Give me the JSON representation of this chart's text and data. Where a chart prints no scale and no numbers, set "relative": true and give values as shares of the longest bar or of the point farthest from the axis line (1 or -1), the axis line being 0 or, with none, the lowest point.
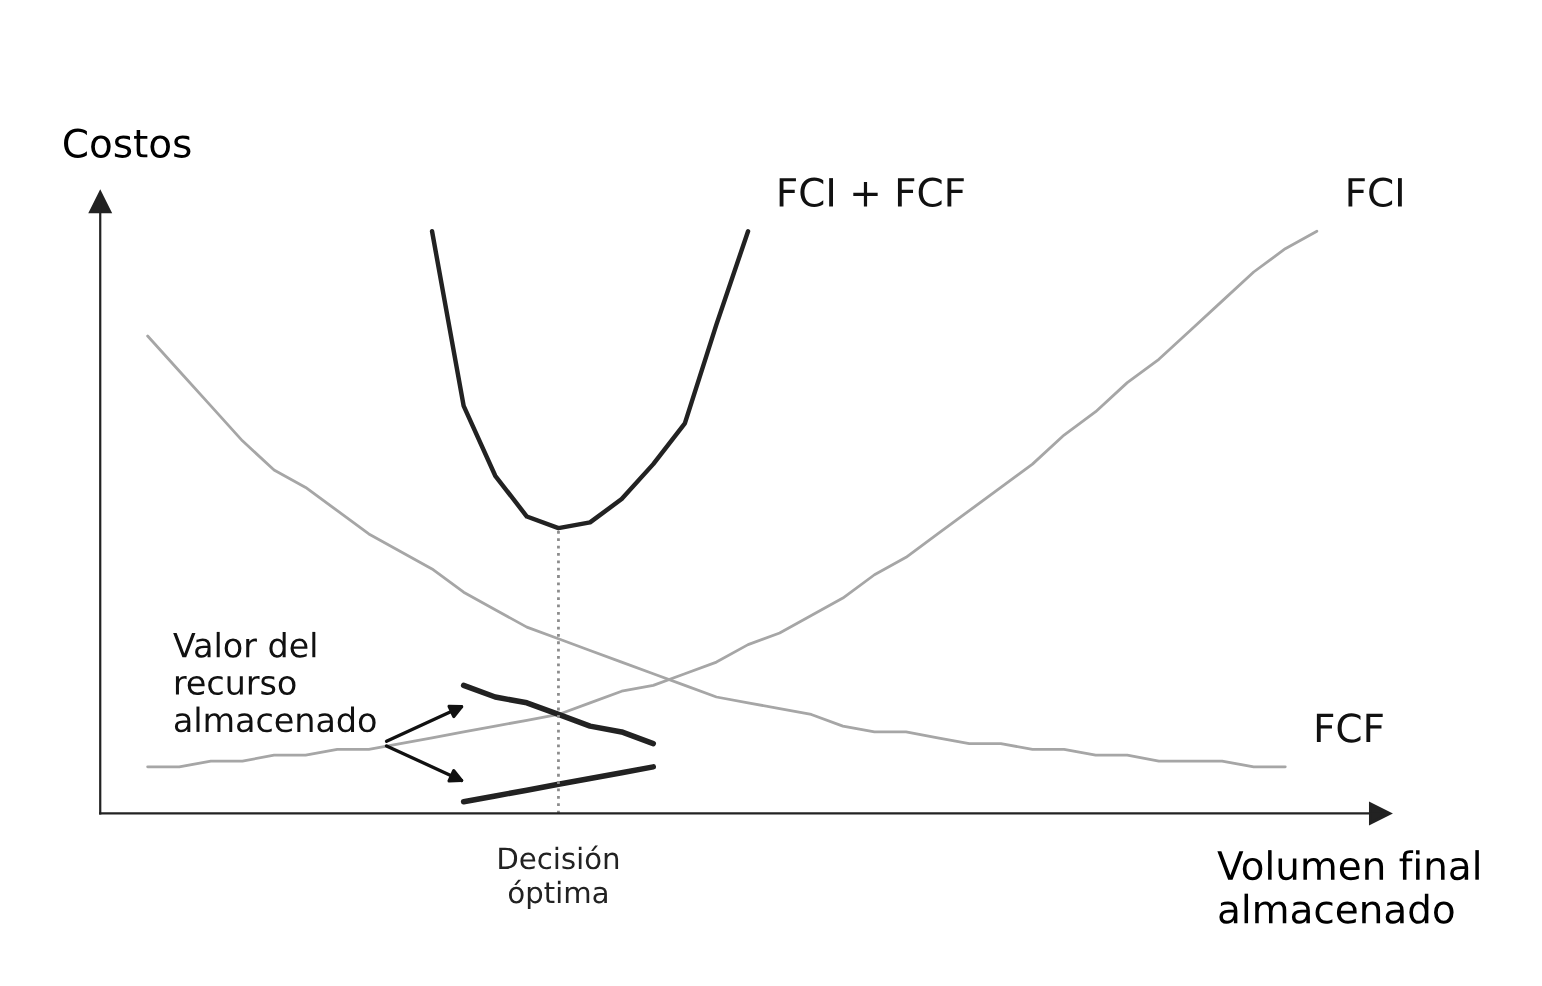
{
  "chart_data": {
    "type": "line",
    "relative": true,
    "xlabel": "Volumen final\nalmacenado",
    "ylabel": "Costos",
    "marker": "none",
    "categories": [
      null,
      null,
      null,
      null,
      null,
      null,
      null,
      null,
      null,
      null,
      null,
      null,
      null,
      null,
      null,
      null,
      null,
      null,
      null,
      null,
      null,
      null,
      null,
      null,
      null,
      null,
      null,
      null,
      null,
      null,
      null,
      null,
      null,
      null,
      null,
      null,
      null,
      null,
      null,
      null,
      null
    ],
    "series": [
      {
        "name": "FCF",
        "color": "#a6a6a6",
        "line_style": "solid",
        "values": [
          null,
          0.82,
          0.76,
          0.7,
          0.64,
          0.59,
          0.56,
          0.52,
          0.48,
          0.45,
          0.42,
          0.38,
          0.35,
          0.32,
          0.3,
          0.28,
          0.26,
          0.24,
          0.22,
          0.2,
          0.19,
          0.18,
          0.17,
          0.15,
          0.14,
          0.14,
          0.13,
          0.12,
          0.12,
          0.11,
          0.11,
          0.1,
          0.1,
          0.09,
          0.09,
          0.09,
          0.08,
          0.08,
          null,
          null,
          null
        ]
      },
      {
        "name": "FCI",
        "color": "#a6a6a6",
        "line_style": "solid",
        "values": [
          null,
          0.08,
          0.08,
          0.09,
          0.09,
          0.1,
          0.1,
          0.11,
          0.11,
          0.12,
          0.13,
          0.14,
          0.15,
          0.16,
          0.17,
          0.19,
          0.21,
          0.22,
          0.24,
          0.26,
          0.29,
          0.31,
          0.34,
          0.37,
          0.41,
          0.44,
          0.48,
          0.52,
          0.56,
          0.6,
          0.65,
          0.69,
          0.74,
          0.78,
          0.83,
          0.88,
          0.93,
          0.97,
          1.0,
          null,
          null
        ]
      },
      {
        "name": "FCI + FCF",
        "color": "#222222",
        "line_style": "solid",
        "values": [
          null,
          null,
          null,
          null,
          null,
          null,
          null,
          null,
          null,
          null,
          1.0,
          0.7,
          0.58,
          0.51,
          0.49,
          0.5,
          0.54,
          0.6,
          0.67,
          0.84,
          1.0,
          null,
          null,
          null,
          null,
          null,
          null,
          null,
          null,
          null,
          null,
          null,
          null,
          null,
          null,
          null,
          null,
          null,
          null,
          null,
          null
        ]
      },
      {
        "color": "#222222",
        "line_style": "solid",
        "values": [
          null,
          null,
          null,
          null,
          null,
          null,
          null,
          null,
          null,
          null,
          null,
          0.22,
          0.2,
          0.19,
          0.17,
          0.15,
          0.14,
          0.12,
          null,
          null,
          null,
          null,
          null,
          null,
          null,
          null,
          null,
          null,
          null,
          null,
          null,
          null,
          null,
          null,
          null,
          null,
          null,
          null,
          null,
          null,
          null
        ]
      },
      {
        "color": "#222222",
        "line_style": "solid",
        "values": [
          null,
          null,
          null,
          null,
          null,
          null,
          null,
          null,
          null,
          null,
          null,
          0.02,
          0.03,
          0.04,
          0.05,
          0.06,
          0.07,
          0.08,
          null,
          null,
          null,
          null,
          null,
          null,
          null,
          null,
          null,
          null,
          null,
          null,
          null,
          null,
          null,
          null,
          null,
          null,
          null,
          null,
          null,
          null,
          null
        ]
      }
    ],
    "ref_lines": [
      {
        "axis": "x",
        "label": "Decisión óptima",
        "color": "#8c8c8c",
        "line_style": "dotted"
      }
    ],
    "annotations": [
      "Valor del\nrecurso\nalmacenado"
    ]
  }
}
